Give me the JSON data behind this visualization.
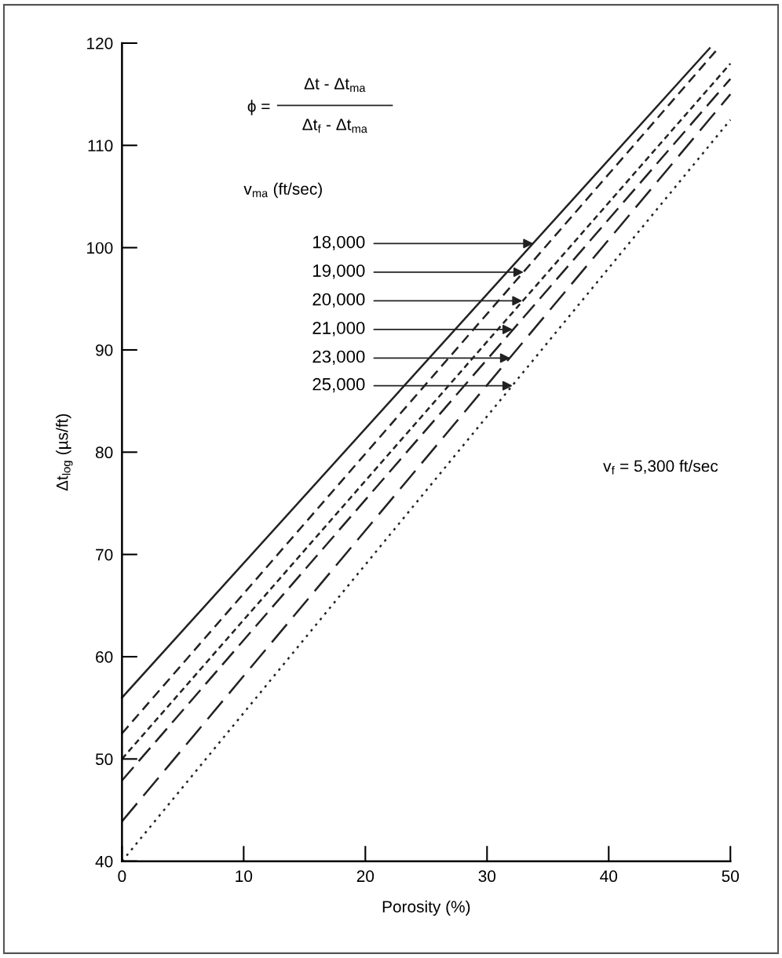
{
  "chart_data": {
    "type": "line",
    "xlabel": "Porosity (%)",
    "ylabel": "Δt$_{log}$ (µs/ft)",
    "annotations": [
      "ϕ =",
      "Δt - Δt$_{ma}$",
      "Δt$_{f}$ - Δt$_{ma}$",
      "v$_{f}$ = 5,300 ft/sec",
      "v$_{ma}$ (ft/sec)",
      {
        "text": "18,000",
        "x": 33.8,
        "y": 100.4
      },
      {
        "text": "19,000",
        "x": 33.0,
        "y": 97.6
      },
      {
        "text": "20,000",
        "x": 32.9,
        "y": 94.8
      },
      {
        "text": "21,000",
        "x": 32.1,
        "y": 92.0
      },
      {
        "text": "23,000",
        "x": 31.9,
        "y": 89.2
      },
      {
        "text": "25,000",
        "x": 32.1,
        "y": 86.5
      }
    ],
    "xlim": [
      0,
      50
    ],
    "ylim": [
      40,
      120
    ],
    "xticks": [
      0,
      10,
      20,
      30,
      40,
      50
    ],
    "yticks": [
      40,
      50,
      60,
      70,
      80,
      90,
      100,
      110,
      120
    ],
    "grid": false,
    "marker": "none",
    "series": [
      {
        "color": "#222222",
        "line_style": "solid",
        "x": [
          0,
          48.3
        ],
        "values": [
          56,
          119.5
        ]
      },
      {
        "color": "#222222",
        "line_style": "dashed",
        "x": [
          0,
          49
        ],
        "values": [
          52.5,
          119.5
        ]
      },
      {
        "color": "#222222",
        "line_style": "dashed",
        "x": [
          0,
          50
        ],
        "values": [
          50,
          118
        ]
      },
      {
        "color": "#222222",
        "line_style": "dashed",
        "x": [
          0,
          50
        ],
        "values": [
          47.9,
          116.5
        ]
      },
      {
        "color": "#222222",
        "line_style": "dashed",
        "x": [
          0,
          50
        ],
        "values": [
          43.9,
          115
        ]
      },
      {
        "color": "#222222",
        "line_style": "dotted",
        "x": [
          0,
          50
        ],
        "values": [
          40,
          112.5
        ]
      }
    ]
  }
}
